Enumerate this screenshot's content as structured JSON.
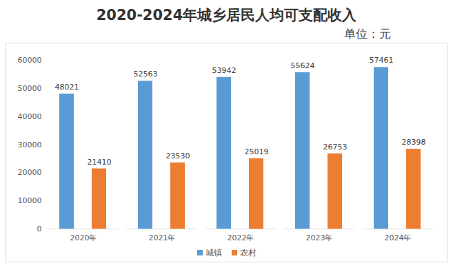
{
  "chart_data": {
    "type": "bar",
    "title": "2020-2024年城乡居民人均可支配收入",
    "subtitle": "单位：元",
    "categories": [
      "2020年",
      "2021年",
      "2022年",
      "2023年",
      "2024年"
    ],
    "series": [
      {
        "name": "城镇",
        "color": "#5b9bd5",
        "values": [
          48021,
          52563,
          53942,
          55624,
          57461
        ]
      },
      {
        "name": "农村",
        "color": "#ed7d31",
        "values": [
          21410,
          23530,
          25019,
          26753,
          28398
        ]
      }
    ],
    "ylim": [
      0,
      60000
    ],
    "yticks": [
      0,
      10000,
      20000,
      30000,
      40000,
      50000,
      60000
    ],
    "grid": false,
    "legend": "bottom",
    "data_labels": true
  }
}
